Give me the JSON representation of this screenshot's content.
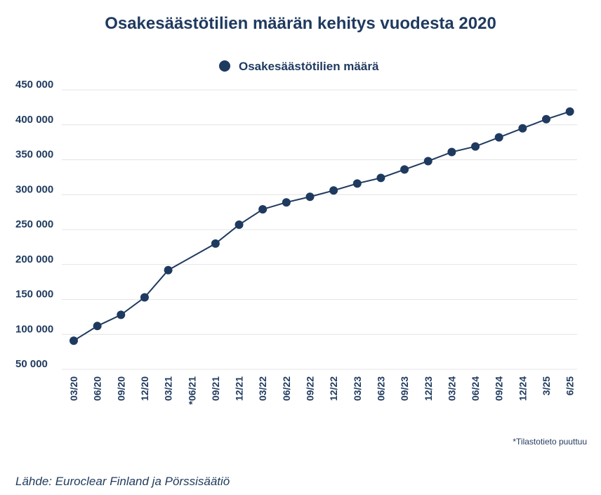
{
  "chart_data": {
    "type": "line",
    "title": "Osakesäästötilien määrän kehitys vuodesta 2020",
    "xlabel": "",
    "ylabel": "",
    "x": [
      "03/20",
      "06/20",
      "09/20",
      "12/20",
      "03/21",
      "*06/21",
      "09/21",
      "12/21",
      "03/22",
      "06/22",
      "09/22",
      "12/22",
      "03/23",
      "06/23",
      "09/23",
      "12/23",
      "03/24",
      "06/24",
      "09/24",
      "12/24",
      "3/25",
      "6/25"
    ],
    "series": [
      {
        "name": "Osakesäästötilien määrä",
        "values": [
          91000,
          112000,
          128000,
          153000,
          192000,
          null,
          230000,
          257000,
          279000,
          289000,
          297000,
          306000,
          316000,
          324000,
          336000,
          348000,
          361000,
          369000,
          382000,
          395000,
          408000,
          419000
        ]
      }
    ],
    "yticks": [
      "450 000",
      "400 000",
      "350 000",
      "300 000",
      "250 000",
      "200 000",
      "150 000",
      "100 000",
      "50 000"
    ],
    "ytick_values": [
      450000,
      400000,
      350000,
      300000,
      250000,
      200000,
      150000,
      100000,
      50000
    ],
    "ylim": [
      50000,
      450000
    ],
    "grid": true,
    "legend": "top-center",
    "colors": {
      "series": "#1f3a5f",
      "grid": "#e4e4e4",
      "text": "#1f3a5f"
    }
  },
  "footnote": "*Tilastotieto puuttuu",
  "source": "Lähde: Euroclear Finland ja Pörssisäätiö"
}
